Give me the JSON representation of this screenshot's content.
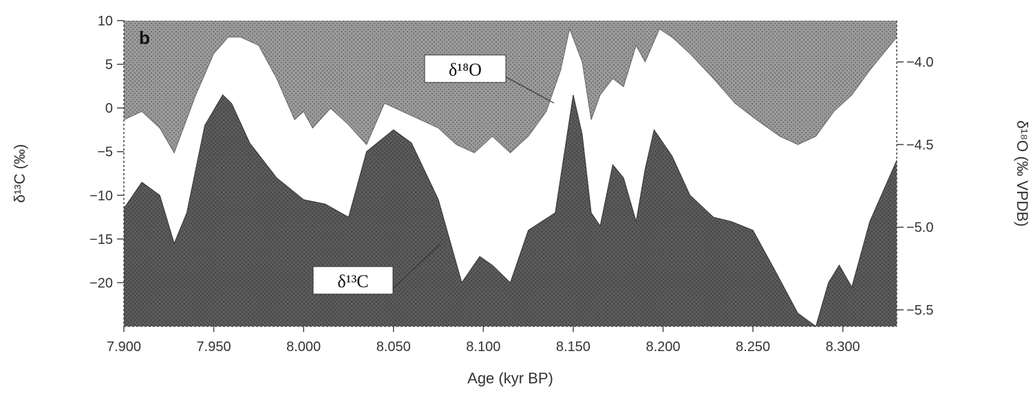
{
  "chart_data": {
    "type": "area",
    "panel_label": "b",
    "xlabel": "Age (kyr BP)",
    "x_tick_labels": [
      "7.900",
      "7.950",
      "8.000",
      "8.050",
      "8.100",
      "8.150",
      "8.200",
      "8.250",
      "8.300"
    ],
    "x_ticks": [
      7.9,
      7.95,
      8.0,
      8.05,
      8.1,
      8.15,
      8.2,
      8.25,
      8.3
    ],
    "xlim": [
      7.9,
      8.33
    ],
    "ylabel_left": "δ¹³C (‰)",
    "y_left_ticks": [
      10,
      5,
      0,
      -5,
      -10,
      -15,
      -20
    ],
    "y_left_tick_labels": [
      "10",
      "5",
      "0",
      "−5",
      "−10",
      "−15",
      "−20"
    ],
    "ylim_left": [
      -25,
      10
    ],
    "ylabel_right": "δ¹⁸O (‰ VPDB)",
    "y_right_ticks": [
      -4.0,
      -4.5,
      -5.0,
      -5.5
    ],
    "y_right_tick_labels": [
      "−4.0",
      "−4.5",
      "−5.0",
      "−5.5"
    ],
    "ylim_right": [
      -5.6,
      -3.75
    ],
    "series": [
      {
        "name": "δ¹³C",
        "axis": "left",
        "fill": "below",
        "color": "#5a5a5a",
        "x": [
          7.9,
          7.91,
          7.92,
          7.928,
          7.935,
          7.945,
          7.955,
          7.96,
          7.97,
          7.985,
          8.0,
          8.012,
          8.025,
          8.035,
          8.05,
          8.06,
          8.075,
          8.088,
          8.098,
          8.105,
          8.115,
          8.125,
          8.14,
          8.15,
          8.155,
          8.16,
          8.165,
          8.172,
          8.178,
          8.185,
          8.19,
          8.195,
          8.205,
          8.215,
          8.228,
          8.238,
          8.25,
          8.262,
          8.275,
          8.285,
          8.292,
          8.298,
          8.305,
          8.315,
          8.33
        ],
        "y": [
          -11.5,
          -8.5,
          -10.0,
          -15.5,
          -12.0,
          -2.0,
          1.5,
          0.5,
          -4.0,
          -8.0,
          -10.5,
          -11.0,
          -12.5,
          -5.0,
          -2.5,
          -4.0,
          -10.5,
          -20.0,
          -17.0,
          -18.0,
          -20.0,
          -14.0,
          -12.0,
          1.5,
          -3.0,
          -12.0,
          -13.5,
          -6.5,
          -8.0,
          -13.0,
          -7.0,
          -2.5,
          -5.5,
          -10.0,
          -12.5,
          -13.0,
          -14.0,
          -18.5,
          -23.5,
          -25.0,
          -20.0,
          -18.0,
          -20.5,
          -13.0,
          -6.0
        ]
      },
      {
        "name": "δ¹⁸O",
        "axis": "right",
        "fill": "above",
        "color": "#9a9a9a",
        "x": [
          7.9,
          7.91,
          7.92,
          7.928,
          7.94,
          7.95,
          7.958,
          7.965,
          7.975,
          7.985,
          7.995,
          8.0,
          8.005,
          8.015,
          8.025,
          8.035,
          8.045,
          8.055,
          8.065,
          8.075,
          8.085,
          8.095,
          8.105,
          8.115,
          8.125,
          8.135,
          8.143,
          8.148,
          8.155,
          8.16,
          8.165,
          8.172,
          8.178,
          8.185,
          8.19,
          8.198,
          8.205,
          8.215,
          8.228,
          8.24,
          8.252,
          8.265,
          8.275,
          8.285,
          8.295,
          8.305,
          8.315,
          8.33
        ],
        "y": [
          -4.35,
          -4.3,
          -4.4,
          -4.55,
          -4.2,
          -3.95,
          -3.85,
          -3.85,
          -3.9,
          -4.1,
          -4.35,
          -4.3,
          -4.4,
          -4.28,
          -4.38,
          -4.5,
          -4.25,
          -4.3,
          -4.35,
          -4.4,
          -4.5,
          -4.55,
          -4.45,
          -4.55,
          -4.45,
          -4.3,
          -4.05,
          -3.8,
          -4.0,
          -4.35,
          -4.2,
          -4.1,
          -4.15,
          -3.9,
          -4.0,
          -3.8,
          -3.85,
          -3.95,
          -4.1,
          -4.25,
          -4.35,
          -4.45,
          -4.5,
          -4.45,
          -4.3,
          -4.2,
          -4.05,
          -3.85
        ]
      }
    ]
  }
}
